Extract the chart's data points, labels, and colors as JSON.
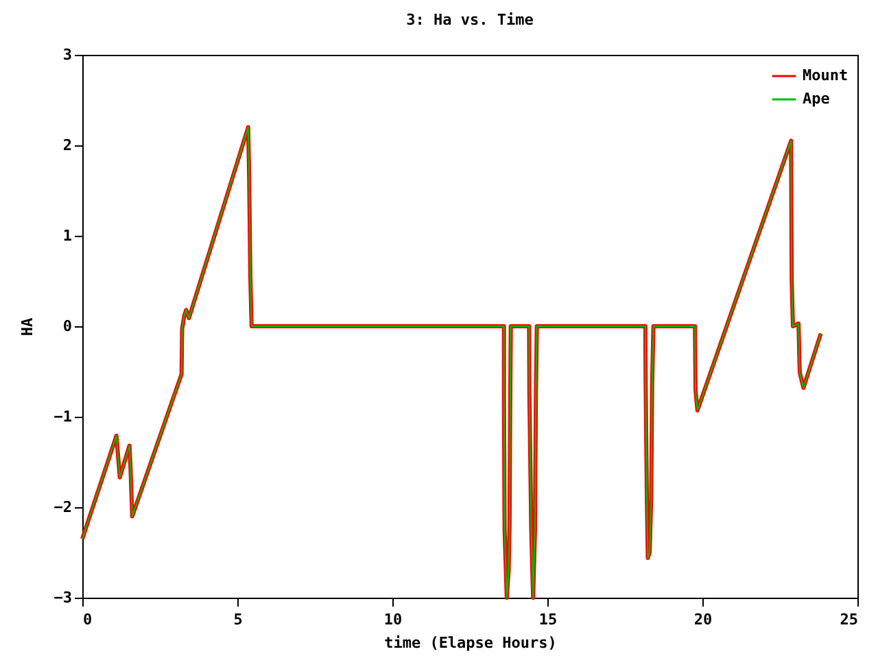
{
  "chart_data": {
    "type": "line",
    "title": "3: Ha vs. Time",
    "xlabel": "time (Elapse Hours)",
    "ylabel": "HA",
    "x": [
      0,
      1.1,
      1.21,
      1.52,
      1.55,
      1.61,
      3.2,
      3.22,
      3.29,
      3.35,
      3.44,
      5.35,
      5.38,
      5.42,
      5.46,
      13.6,
      13.6,
      13.62,
      13.69,
      13.75,
      13.78,
      13.8,
      13.82,
      14.41,
      14.42,
      14.48,
      14.54,
      14.6,
      14.63,
      14.66,
      18.16,
      18.17,
      18.21,
      18.24,
      18.3,
      18.35,
      18.38,
      18.42,
      19.76,
      19.78,
      19.84,
      22.86,
      22.88,
      22.92,
      23.1,
      23.14,
      23.26,
      23.82
    ],
    "series": [
      {
        "name": "Mount",
        "color": "#ff0000",
        "values": [
          -2.35,
          -1.21,
          -1.67,
          -1.32,
          -1.52,
          -2.1,
          -0.53,
          -0.03,
          0.12,
          0.18,
          0.09,
          2.2,
          1.67,
          0.55,
          0,
          0,
          -0.76,
          -2.25,
          -3,
          -2.7,
          -2.2,
          -0.94,
          0,
          0,
          -0.74,
          -2.25,
          -3,
          -2.25,
          -0.76,
          0,
          0,
          -0.64,
          -1.92,
          -2.56,
          -2.5,
          -1.87,
          -0.63,
          0,
          0,
          -0.71,
          -0.93,
          2.05,
          0.53,
          0,
          0.03,
          -0.51,
          -0.68,
          -0.08
        ]
      },
      {
        "name": "Ape",
        "color": "#00c000",
        "values": [
          -2.35,
          -1.21,
          -1.67,
          -1.32,
          -1.52,
          -2.1,
          -0.53,
          -0.03,
          0.12,
          0.18,
          0.09,
          2.2,
          1.67,
          0.55,
          0,
          0,
          -0.76,
          -2.25,
          -3,
          -2.7,
          -2.2,
          -0.94,
          0,
          0,
          -0.74,
          -2.25,
          -3,
          -2.25,
          -0.76,
          0,
          0,
          -0.64,
          -1.92,
          -2.56,
          -2.5,
          -1.87,
          -0.63,
          0,
          0,
          -0.71,
          -0.93,
          2.05,
          0.53,
          0,
          0.03,
          -0.51,
          -0.68,
          -0.08
        ]
      }
    ],
    "xlim": [
      0,
      25
    ],
    "xticks": [
      0,
      5,
      10,
      15,
      20,
      25
    ],
    "ylim": [
      -3,
      3
    ],
    "yticks": [
      -3,
      -2,
      -1,
      0,
      1,
      2,
      3
    ],
    "grid": false,
    "legend": "top right",
    "line_style": "solid",
    "marker": "none"
  }
}
